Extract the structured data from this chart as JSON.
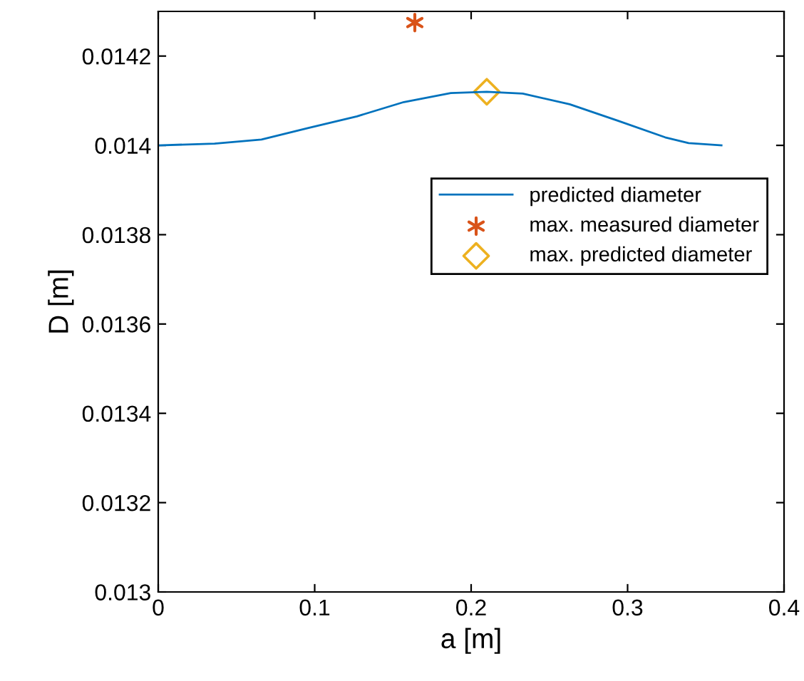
{
  "chart_data": {
    "type": "line",
    "xlabel": "a [m]",
    "ylabel": "D [m]",
    "xlim": [
      0,
      0.4
    ],
    "ylim": [
      0.013,
      0.0143
    ],
    "xticks": [
      0,
      0.1,
      0.2,
      0.3,
      0.4
    ],
    "yticks": [
      0.013,
      0.0132,
      0.0134,
      0.0136,
      0.0138,
      0.014,
      0.0142
    ],
    "grid": false,
    "legend": "right",
    "series": [
      {
        "name": "predicted diameter",
        "color": "#0072bd",
        "marker": "none",
        "x": [
          0,
          0.036,
          0.066,
          0.096,
          0.127,
          0.157,
          0.187,
          0.21,
          0.233,
          0.263,
          0.294,
          0.324,
          0.339,
          0.36
        ],
        "values": [
          0.014,
          0.014004,
          0.014013,
          0.014039,
          0.014065,
          0.014097,
          0.014117,
          0.01412,
          0.014116,
          0.014092,
          0.014055,
          0.014018,
          0.014005,
          0.014
        ]
      },
      {
        "name": "max. measured diameter",
        "type": "scatter",
        "color": "#d95319",
        "marker": "cross",
        "x": [
          0.164
        ],
        "values": [
          0.014275
        ]
      },
      {
        "name": "max. predicted diameter",
        "type": "scatter",
        "color": "#edb120",
        "marker": "diamond",
        "x": [
          0.21
        ],
        "values": [
          0.01412
        ]
      }
    ]
  }
}
